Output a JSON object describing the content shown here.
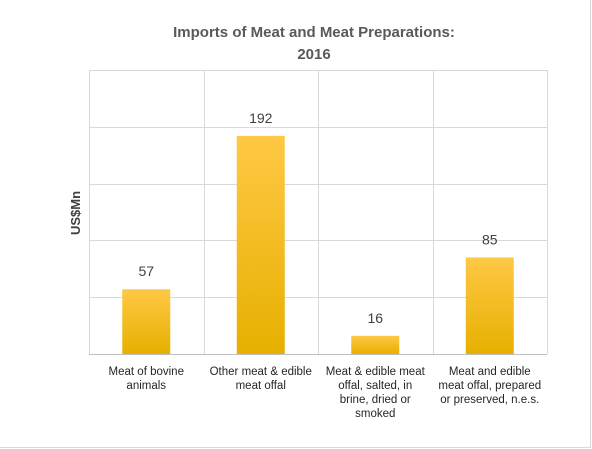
{
  "chart_data": {
    "type": "bar",
    "title": [
      "Imports of Meat and Meat  Preparations:",
      "2016"
    ],
    "ylabel": "US$Mn",
    "xlabel": "",
    "categories": [
      [
        "Meat of bovine",
        "animals"
      ],
      [
        "Other meat & edible",
        "meat offal"
      ],
      [
        "Meat & edible meat",
        "offal, salted, in",
        "brine, dried or",
        "smoked"
      ],
      [
        "Meat and edible",
        "meat offal, prepared",
        "or preserved, n.e.s."
      ]
    ],
    "values": [
      57,
      192,
      16,
      85
    ],
    "data_labels": [
      "57",
      "192",
      "16",
      "85"
    ],
    "ylim": [
      0,
      250
    ],
    "y_gridlines": [
      0,
      50,
      100,
      150,
      200,
      250
    ],
    "grid": true,
    "legend": "none",
    "colors": {
      "bar_top": "#ffc845",
      "bar_bottom": "#e6b000",
      "grid": "#d9d9d9"
    }
  }
}
